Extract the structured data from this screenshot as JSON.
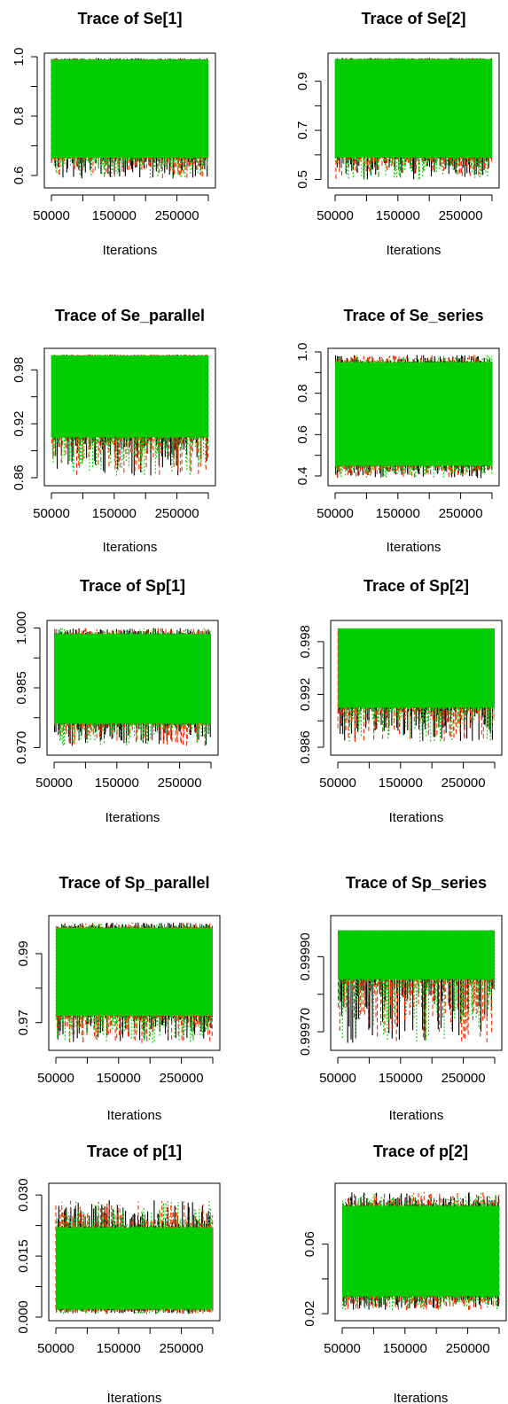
{
  "chart_data": [
    {
      "type": "line",
      "title": "Trace of Se[1]",
      "xlabel": "Iterations",
      "ylabel": "",
      "xlim": [
        50000,
        300000
      ],
      "ylim": [
        0.57,
        1.0
      ],
      "x_ticks": [
        "50000",
        "150000",
        "250000"
      ],
      "x_tick_values": [
        50000,
        150000,
        250000
      ],
      "y_ticks": [
        "0.6",
        "0.8",
        "1.0"
      ],
      "y_tick_values": [
        0.6,
        0.8,
        1.0
      ],
      "band": {
        "low": 0.66,
        "high": 0.99
      },
      "tails": {
        "low": 0.59,
        "high": 0.995
      },
      "series": [
        {
          "color": "#000000"
        },
        {
          "color": "#ff2a00"
        },
        {
          "color": "#00cc00"
        }
      ]
    },
    {
      "type": "line",
      "title": "Trace of Se[2]",
      "xlabel": "Iterations",
      "ylabel": "",
      "xlim": [
        50000,
        300000
      ],
      "ylim": [
        0.48,
        1.0
      ],
      "x_ticks": [
        "50000",
        "150000",
        "250000"
      ],
      "x_tick_values": [
        50000,
        150000,
        250000
      ],
      "y_ticks": [
        "0.5",
        "0.7",
        "0.9"
      ],
      "y_tick_values": [
        0.5,
        0.7,
        0.9
      ],
      "band": {
        "low": 0.59,
        "high": 0.99
      },
      "tails": {
        "low": 0.5,
        "high": 0.995
      },
      "series": [
        {
          "color": "#000000"
        },
        {
          "color": "#ff2a00"
        },
        {
          "color": "#00cc00"
        }
      ]
    },
    {
      "type": "line",
      "title": "Trace of Se_parallel",
      "xlabel": "Iterations",
      "ylabel": "",
      "xlim": [
        50000,
        300000
      ],
      "ylim": [
        0.855,
        1.0
      ],
      "x_ticks": [
        "50000",
        "150000",
        "250000"
      ],
      "x_tick_values": [
        50000,
        150000,
        250000
      ],
      "y_ticks": [
        "0.86",
        "0.92",
        "0.98"
      ],
      "y_tick_values": [
        0.86,
        0.92,
        0.98
      ],
      "band": {
        "low": 0.905,
        "high": 0.996
      },
      "tails": {
        "low": 0.862,
        "high": 0.997
      },
      "series": [
        {
          "color": "#000000"
        },
        {
          "color": "#ff2a00"
        },
        {
          "color": "#00cc00"
        }
      ]
    },
    {
      "type": "line",
      "title": "Trace of Se_series",
      "xlabel": "Iterations",
      "ylabel": "",
      "xlim": [
        50000,
        300000
      ],
      "ylim": [
        0.37,
        1.0
      ],
      "x_ticks": [
        "50000",
        "150000",
        "250000"
      ],
      "x_tick_values": [
        50000,
        150000,
        250000
      ],
      "y_ticks": [
        "0.4",
        "0.6",
        "0.8",
        "1.0"
      ],
      "y_tick_values": [
        0.4,
        0.6,
        0.8,
        1.0
      ],
      "band": {
        "low": 0.45,
        "high": 0.95
      },
      "tails": {
        "low": 0.39,
        "high": 0.985
      },
      "series": [
        {
          "color": "#000000"
        },
        {
          "color": "#ff2a00"
        },
        {
          "color": "#00cc00"
        }
      ]
    },
    {
      "type": "line",
      "title": "Trace of Sp[1]",
      "xlabel": "Iterations",
      "ylabel": "",
      "xlim": [
        50000,
        300000
      ],
      "ylim": [
        0.969,
        1.001
      ],
      "x_ticks": [
        "50000",
        "150000",
        "250000"
      ],
      "x_tick_values": [
        50000,
        150000,
        250000
      ],
      "y_ticks": [
        "0.970",
        "0.985",
        "1.000"
      ],
      "y_tick_values": [
        0.97,
        0.985,
        1.0
      ],
      "band": {
        "low": 0.976,
        "high": 0.9985
      },
      "tails": {
        "low": 0.9705,
        "high": 1.0
      },
      "series": [
        {
          "color": "#000000"
        },
        {
          "color": "#ff2a00"
        },
        {
          "color": "#00cc00"
        }
      ]
    },
    {
      "type": "line",
      "title": "Trace of Sp[2]",
      "xlabel": "Iterations",
      "ylabel": "",
      "xlim": [
        50000,
        300000
      ],
      "ylim": [
        0.9855,
        1.0
      ],
      "x_ticks": [
        "50000",
        "150000",
        "250000"
      ],
      "x_tick_values": [
        50000,
        150000,
        250000
      ],
      "y_ticks": [
        "0.986",
        "0.992",
        "0.998"
      ],
      "y_tick_values": [
        0.986,
        0.992,
        0.998
      ],
      "band": {
        "low": 0.9905,
        "high": 0.9995
      },
      "tails": {
        "low": 0.9866,
        "high": 0.9995
      },
      "series": [
        {
          "color": "#000000"
        },
        {
          "color": "#ff2a00"
        },
        {
          "color": "#00cc00"
        }
      ]
    },
    {
      "type": "line",
      "title": "Trace of Sp_parallel",
      "xlabel": "Iterations",
      "ylabel": "",
      "xlim": [
        50000,
        300000
      ],
      "ylim": [
        0.963,
        1.0
      ],
      "x_ticks": [
        "50000",
        "150000",
        "250000"
      ],
      "x_tick_values": [
        50000,
        150000,
        250000
      ],
      "y_ticks": [
        "0.97",
        "0.99"
      ],
      "y_tick_values": [
        0.97,
        0.99
      ],
      "band": {
        "low": 0.972,
        "high": 0.9975
      },
      "tails": {
        "low": 0.964,
        "high": 0.999
      },
      "series": [
        {
          "color": "#000000"
        },
        {
          "color": "#ff2a00"
        },
        {
          "color": "#00cc00"
        }
      ]
    },
    {
      "type": "line",
      "title": "Trace of Sp_series",
      "xlabel": "Iterations",
      "ylabel": "",
      "xlim": [
        50000,
        300000
      ],
      "ylim": [
        0.99966,
        1.0
      ],
      "x_ticks": [
        "50000",
        "150000",
        "250000"
      ],
      "x_tick_values": [
        50000,
        150000,
        250000
      ],
      "y_ticks": [
        "0.99970",
        "0.99990"
      ],
      "y_tick_values": [
        0.9997,
        0.9999
      ],
      "band": {
        "low": 0.99984,
        "high": 0.99997
      },
      "tails": {
        "low": 0.99967,
        "high": 0.99997
      },
      "series": [
        {
          "color": "#000000"
        },
        {
          "color": "#ff2a00"
        },
        {
          "color": "#00cc00"
        }
      ]
    },
    {
      "type": "line",
      "title": "Trace of p[1]",
      "xlabel": "Iterations",
      "ylabel": "",
      "xlim": [
        50000,
        300000
      ],
      "ylim": [
        0.0,
        0.032
      ],
      "x_ticks": [
        "50000",
        "150000",
        "250000"
      ],
      "x_tick_values": [
        50000,
        150000,
        250000
      ],
      "y_ticks": [
        "0.000",
        "0.015",
        "0.030"
      ],
      "y_tick_values": [
        0.0,
        0.015,
        0.03
      ],
      "band": {
        "low": 0.002,
        "high": 0.022
      },
      "tails": {
        "low": 0.0008,
        "high": 0.029
      },
      "series": [
        {
          "color": "#000000"
        },
        {
          "color": "#ff2a00"
        },
        {
          "color": "#00cc00"
        }
      ]
    },
    {
      "type": "line",
      "title": "Trace of p[2]",
      "xlabel": "Iterations",
      "ylabel": "",
      "xlim": [
        50000,
        300000
      ],
      "ylim": [
        0.018,
        0.093
      ],
      "x_ticks": [
        "50000",
        "150000",
        "250000"
      ],
      "x_tick_values": [
        50000,
        150000,
        250000
      ],
      "y_ticks": [
        "0.02",
        "0.06"
      ],
      "y_tick_values": [
        0.02,
        0.06
      ],
      "band": {
        "low": 0.03,
        "high": 0.082
      },
      "tails": {
        "low": 0.022,
        "high": 0.09
      },
      "series": [
        {
          "color": "#000000"
        },
        {
          "color": "#ff2a00"
        },
        {
          "color": "#00cc00"
        }
      ]
    }
  ]
}
